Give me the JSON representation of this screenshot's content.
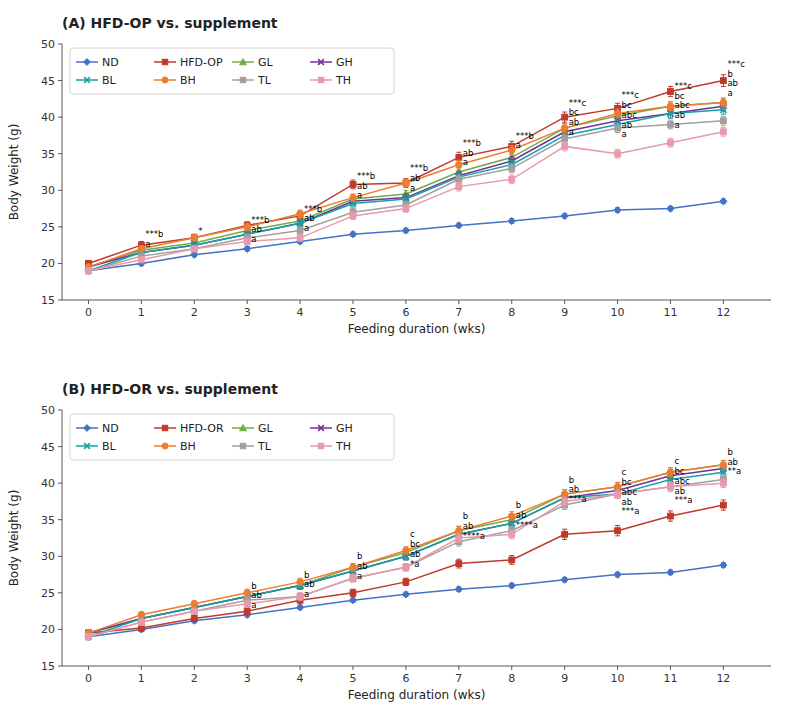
{
  "chart_data": [
    {
      "type": "line",
      "title": "(A) HFD-OP vs. supplement",
      "xlabel": "Feeding duration (wks)",
      "ylabel": "Body Weight (g)",
      "x": [
        0,
        1,
        2,
        3,
        4,
        5,
        6,
        7,
        8,
        9,
        10,
        11,
        12
      ],
      "xlim": [
        -0.5,
        12.9
      ],
      "xticks": [
        0,
        1,
        2,
        3,
        4,
        5,
        6,
        7,
        8,
        9,
        10,
        11,
        12
      ],
      "ylim": [
        15,
        50
      ],
      "yticks": [
        15,
        20,
        25,
        30,
        35,
        40,
        45,
        50
      ],
      "grid": false,
      "legend": "upper left",
      "series": [
        {
          "name": "ND",
          "color": "#4472c4",
          "marker": "diamond",
          "values": [
            19.0,
            20.0,
            21.2,
            22.0,
            23.0,
            24.0,
            24.5,
            25.2,
            25.8,
            26.5,
            27.3,
            27.5,
            28.5
          ],
          "errors": [
            0.3,
            0.3,
            0.3,
            0.3,
            0.3,
            0.3,
            0.3,
            0.3,
            0.3,
            0.3,
            0.3,
            0.3,
            0.3
          ]
        },
        {
          "name": "HFD-OP",
          "color": "#c0392b",
          "marker": "square",
          "values": [
            20.0,
            22.5,
            23.5,
            25.2,
            26.5,
            30.8,
            31.0,
            34.5,
            36.0,
            40.0,
            41.2,
            43.5,
            45.0
          ],
          "errors": [
            0.4,
            0.5,
            0.5,
            0.5,
            0.5,
            0.6,
            0.6,
            0.7,
            0.7,
            0.7,
            0.7,
            0.7,
            0.8
          ]
        },
        {
          "name": "GL",
          "color": "#70ad47",
          "marker": "triangle",
          "values": [
            19.5,
            21.8,
            22.8,
            24.5,
            25.8,
            28.8,
            29.5,
            32.5,
            34.5,
            38.5,
            40.2,
            41.5,
            42.0
          ],
          "errors": [
            0.4,
            0.4,
            0.4,
            0.5,
            0.5,
            0.5,
            0.5,
            0.6,
            0.6,
            0.6,
            0.6,
            0.6,
            0.6
          ]
        },
        {
          "name": "GH",
          "color": "#7030a0",
          "marker": "x",
          "values": [
            19.5,
            21.5,
            22.5,
            24.0,
            25.5,
            28.5,
            29.0,
            32.0,
            34.0,
            38.0,
            39.5,
            40.5,
            41.5
          ],
          "errors": [
            0.4,
            0.4,
            0.4,
            0.5,
            0.5,
            0.5,
            0.5,
            0.6,
            0.6,
            0.6,
            0.6,
            0.6,
            0.6
          ]
        },
        {
          "name": "BL",
          "color": "#17a0a0",
          "marker": "x",
          "values": [
            19.0,
            21.5,
            22.5,
            24.0,
            25.5,
            28.2,
            28.8,
            31.8,
            33.5,
            37.5,
            39.0,
            40.5,
            41.0
          ],
          "errors": [
            0.4,
            0.4,
            0.4,
            0.5,
            0.5,
            0.5,
            0.5,
            0.6,
            0.6,
            0.6,
            0.6,
            0.6,
            0.6
          ]
        },
        {
          "name": "BH",
          "color": "#ed7d31",
          "marker": "circle",
          "values": [
            19.5,
            22.0,
            23.5,
            25.0,
            26.8,
            29.0,
            31.0,
            33.5,
            35.5,
            38.5,
            40.5,
            41.5,
            42.0
          ],
          "errors": [
            0.4,
            0.4,
            0.4,
            0.5,
            0.5,
            0.5,
            0.5,
            0.6,
            0.6,
            0.6,
            0.6,
            0.6,
            0.6
          ]
        },
        {
          "name": "TL",
          "color": "#a0a0a0",
          "marker": "square",
          "values": [
            19.0,
            21.0,
            22.0,
            23.5,
            24.5,
            27.0,
            28.0,
            31.5,
            33.0,
            37.0,
            38.5,
            39.0,
            39.5
          ],
          "errors": [
            0.4,
            0.4,
            0.4,
            0.5,
            0.5,
            0.5,
            0.5,
            0.6,
            0.6,
            0.6,
            0.6,
            0.6,
            0.6
          ]
        },
        {
          "name": "TH",
          "color": "#e899aa",
          "marker": "square",
          "values": [
            19.0,
            20.5,
            22.0,
            23.0,
            23.5,
            26.5,
            27.5,
            30.5,
            31.5,
            36.0,
            35.0,
            36.5,
            38.0
          ],
          "errors": [
            0.4,
            0.4,
            0.4,
            0.5,
            0.5,
            0.5,
            0.5,
            0.6,
            0.6,
            0.6,
            0.6,
            0.6,
            0.6
          ]
        }
      ],
      "annotations": [
        {
          "x": 1,
          "y": 24.5,
          "text": "***b\na"
        },
        {
          "x": 2,
          "y": 25.0,
          "text": "*"
        },
        {
          "x": 3,
          "y": 26.5,
          "text": "***b\nab\na"
        },
        {
          "x": 4,
          "y": 28.0,
          "text": "***b\nab\na"
        },
        {
          "x": 5,
          "y": 32.5,
          "text": "***b\nab\na"
        },
        {
          "x": 6,
          "y": 33.5,
          "text": "***b\nab\na"
        },
        {
          "x": 7,
          "y": 37.0,
          "text": "***b\nab\na"
        },
        {
          "x": 8,
          "y": 38.0,
          "text": "***b\na"
        },
        {
          "x": 9,
          "y": 42.5,
          "text": "***c\nbc\nab\na"
        },
        {
          "x": 10,
          "y": 43.5,
          "text": "***c\nbc\nabc\nab\na"
        },
        {
          "x": 11,
          "y": 44.8,
          "text": "***c\nbc\nabc\nab\na"
        },
        {
          "x": 12,
          "y": 47.8,
          "text": "***c\nb\nab\na"
        }
      ]
    },
    {
      "type": "line",
      "title": "(B) HFD-OR vs. supplement",
      "xlabel": "Feeding duration (wks)",
      "ylabel": "Body Weight (g)",
      "x": [
        0,
        1,
        2,
        3,
        4,
        5,
        6,
        7,
        8,
        9,
        10,
        11,
        12
      ],
      "xlim": [
        -0.5,
        12.9
      ],
      "xticks": [
        0,
        1,
        2,
        3,
        4,
        5,
        6,
        7,
        8,
        9,
        10,
        11,
        12
      ],
      "ylim": [
        15,
        50
      ],
      "yticks": [
        15,
        20,
        25,
        30,
        35,
        40,
        45,
        50
      ],
      "grid": false,
      "legend": "upper left",
      "series": [
        {
          "name": "ND",
          "color": "#4472c4",
          "marker": "diamond",
          "values": [
            19.0,
            20.0,
            21.2,
            22.0,
            23.0,
            24.0,
            24.8,
            25.5,
            26.0,
            26.8,
            27.5,
            27.8,
            28.8
          ],
          "errors": [
            0.3,
            0.3,
            0.3,
            0.3,
            0.3,
            0.3,
            0.3,
            0.3,
            0.3,
            0.3,
            0.3,
            0.3,
            0.3
          ]
        },
        {
          "name": "HFD-OR",
          "color": "#c0392b",
          "marker": "square",
          "values": [
            19.5,
            20.2,
            21.5,
            22.5,
            24.0,
            25.0,
            26.5,
            29.0,
            29.5,
            33.0,
            33.5,
            35.5,
            37.0
          ],
          "errors": [
            0.4,
            0.4,
            0.4,
            0.5,
            0.5,
            0.5,
            0.5,
            0.6,
            0.6,
            0.7,
            0.7,
            0.7,
            0.7
          ]
        },
        {
          "name": "GL",
          "color": "#70ad47",
          "marker": "triangle",
          "values": [
            19.5,
            21.5,
            23.0,
            24.5,
            26.0,
            28.5,
            30.5,
            33.5,
            35.0,
            38.5,
            39.5,
            41.5,
            42.5
          ],
          "errors": [
            0.4,
            0.4,
            0.4,
            0.5,
            0.5,
            0.5,
            0.5,
            0.6,
            0.6,
            0.6,
            0.6,
            0.6,
            0.6
          ]
        },
        {
          "name": "GH",
          "color": "#7030a0",
          "marker": "x",
          "values": [
            19.5,
            21.5,
            23.0,
            24.5,
            26.0,
            28.0,
            30.0,
            33.0,
            34.5,
            38.0,
            39.0,
            41.0,
            42.0
          ],
          "errors": [
            0.4,
            0.4,
            0.4,
            0.5,
            0.5,
            0.5,
            0.5,
            0.6,
            0.6,
            0.6,
            0.6,
            0.6,
            0.6
          ]
        },
        {
          "name": "BL",
          "color": "#17a0a0",
          "marker": "x",
          "values": [
            19.0,
            21.5,
            23.0,
            24.5,
            26.0,
            28.0,
            30.0,
            33.0,
            34.5,
            38.0,
            38.5,
            40.5,
            41.5
          ],
          "errors": [
            0.4,
            0.4,
            0.4,
            0.5,
            0.5,
            0.5,
            0.5,
            0.6,
            0.6,
            0.6,
            0.6,
            0.6,
            0.6
          ]
        },
        {
          "name": "BH",
          "color": "#ed7d31",
          "marker": "circle",
          "values": [
            19.5,
            22.0,
            23.5,
            25.0,
            26.5,
            28.5,
            30.8,
            33.5,
            35.5,
            38.5,
            39.5,
            41.5,
            42.5
          ],
          "errors": [
            0.4,
            0.4,
            0.4,
            0.5,
            0.5,
            0.5,
            0.5,
            0.6,
            0.6,
            0.6,
            0.6,
            0.6,
            0.6
          ]
        },
        {
          "name": "TL",
          "color": "#a0a0a0",
          "marker": "square",
          "values": [
            19.0,
            21.0,
            22.5,
            24.0,
            24.5,
            27.0,
            28.5,
            32.0,
            33.5,
            37.0,
            38.5,
            39.5,
            40.5
          ],
          "errors": [
            0.4,
            0.4,
            0.4,
            0.5,
            0.5,
            0.5,
            0.5,
            0.6,
            0.6,
            0.6,
            0.6,
            0.6,
            0.6
          ]
        },
        {
          "name": "TH",
          "color": "#e899aa",
          "marker": "square",
          "values": [
            19.0,
            21.0,
            22.5,
            23.5,
            24.5,
            27.0,
            28.5,
            32.5,
            33.0,
            37.5,
            38.5,
            39.5,
            40.0
          ],
          "errors": [
            0.4,
            0.4,
            0.4,
            0.5,
            0.5,
            0.5,
            0.5,
            0.6,
            0.6,
            0.6,
            0.6,
            0.6,
            0.6
          ]
        }
      ],
      "annotations": [
        {
          "x": 3,
          "y": 26.5,
          "text": "b\nab\na"
        },
        {
          "x": 4,
          "y": 28.0,
          "text": "b\nab\na"
        },
        {
          "x": 5,
          "y": 30.5,
          "text": "b\nab\na"
        },
        {
          "x": 6,
          "y": 33.5,
          "text": "c\nbc\nab\n*a"
        },
        {
          "x": 7,
          "y": 36.0,
          "text": "b\nab\n****a"
        },
        {
          "x": 8,
          "y": 37.5,
          "text": "b\nab\n****a"
        },
        {
          "x": 9,
          "y": 41.0,
          "text": "b\nab\n***a"
        },
        {
          "x": 10,
          "y": 42.0,
          "text": "c\nbc\nabc\nab\n***a"
        },
        {
          "x": 11,
          "y": 43.5,
          "text": "c\nbc\nabc\nab\n***a"
        },
        {
          "x": 12,
          "y": 44.8,
          "text": "b\nab\n**a"
        }
      ]
    }
  ]
}
